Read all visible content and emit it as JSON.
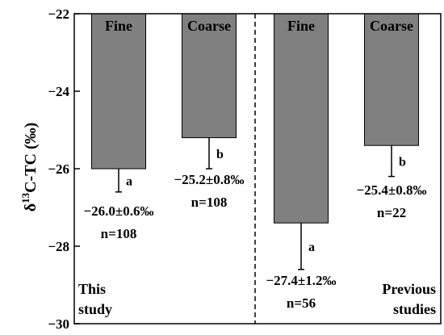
{
  "chart_data": {
    "type": "bar",
    "ylabel_parts": [
      "δ",
      "13",
      "C-TC (‰)"
    ],
    "ylim": [
      -30,
      -22
    ],
    "yticks": [
      -30,
      -28,
      -26,
      -24,
      -22
    ],
    "ytick_labels": [
      "−30",
      "−28",
      "−26",
      "−24",
      "−22"
    ],
    "invert_y": true,
    "bar_color": "#808080",
    "bars": [
      {
        "category": "Fine",
        "value": -26.0,
        "error": 0.6,
        "letter": "a",
        "label": "−26.0±0.6‰",
        "n": "n=108"
      },
      {
        "category": "Coarse",
        "value": -25.2,
        "error": 0.8,
        "letter": "b",
        "label": "−25.2±0.8‰",
        "n": "n=108"
      },
      {
        "category": "Fine",
        "value": -27.4,
        "error": 1.2,
        "letter": "a",
        "label": "−27.4±1.2‰",
        "n": "n=56"
      },
      {
        "category": "Coarse",
        "value": -25.4,
        "error": 0.8,
        "letter": "b",
        "label": "−25.4±0.8‰",
        "n": "n=22"
      }
    ],
    "groups": [
      {
        "lines": [
          "This",
          "study"
        ]
      },
      {
        "lines": [
          "Previous",
          "studies"
        ]
      }
    ],
    "divider": "dashed"
  }
}
